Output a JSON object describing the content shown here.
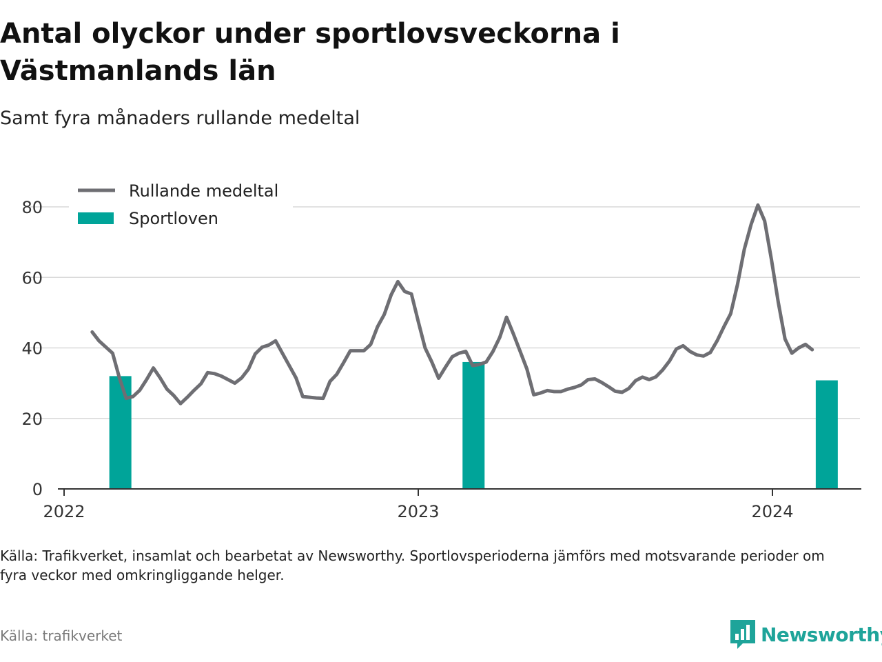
{
  "header": {
    "title": "Antal olyckor under sportlovsveckorna i Västmanlands län",
    "subtitle": "Samt fyra månaders rullande medeltal"
  },
  "footer": {
    "note": "Källa: Trafikverket, insamlat och bearbetat av Newsworthy. Sportlovsperioderna jämförs med motsvarande perioder om fyra veckor med omkringliggande helger.",
    "source": "Källa: trafikverket",
    "brand": "Newsworthy"
  },
  "colors": {
    "line": "#6e6e73",
    "bars": "#00a499",
    "grid": "#d9d9d9",
    "brand": "#1ea49a"
  },
  "chart_data": {
    "type": "bar",
    "x_axis": {
      "min": "2022-01-01",
      "max": "2024-03-31",
      "ticks": [
        "2022",
        "2023",
        "2024"
      ]
    },
    "y_axis": {
      "min": 0,
      "max": 85,
      "ticks": [
        0,
        20,
        40,
        60,
        80
      ]
    },
    "grid": true,
    "legend": {
      "placement": "top-left",
      "line_label": "Rullande medeltal",
      "bar_label": "Sportloven"
    },
    "bars": [
      {
        "date": "2022-02-28",
        "value": 32
      },
      {
        "date": "2023-02-27",
        "value": 36
      },
      {
        "date": "2024-02-26",
        "value": 30.8
      }
    ],
    "series": [
      {
        "name": "Rullande medeltal",
        "type": "line",
        "points": [
          [
            "2022-01-30",
            44.5
          ],
          [
            "2022-02-06",
            42
          ],
          [
            "2022-02-20",
            38.5
          ],
          [
            "2022-02-27",
            31.5
          ],
          [
            "2022-03-06",
            25.7
          ],
          [
            "2022-03-13",
            26.2
          ],
          [
            "2022-03-20",
            28
          ],
          [
            "2022-03-27",
            31
          ],
          [
            "2022-04-03",
            34.3
          ],
          [
            "2022-04-10",
            31.5
          ],
          [
            "2022-04-17",
            28.3
          ],
          [
            "2022-04-24",
            26.5
          ],
          [
            "2022-05-01",
            24.2
          ],
          [
            "2022-05-08",
            26
          ],
          [
            "2022-05-15",
            28
          ],
          [
            "2022-05-22",
            29.8
          ],
          [
            "2022-05-29",
            33
          ],
          [
            "2022-06-05",
            32.7
          ],
          [
            "2022-06-12",
            32
          ],
          [
            "2022-06-19",
            31
          ],
          [
            "2022-06-26",
            30
          ],
          [
            "2022-07-03",
            31.5
          ],
          [
            "2022-07-10",
            34
          ],
          [
            "2022-07-17",
            38.3
          ],
          [
            "2022-07-24",
            40.2
          ],
          [
            "2022-07-31",
            40.8
          ],
          [
            "2022-08-07",
            42
          ],
          [
            "2022-08-14",
            38.5
          ],
          [
            "2022-08-21",
            35
          ],
          [
            "2022-08-28",
            31.5
          ],
          [
            "2022-09-04",
            26.2
          ],
          [
            "2022-09-11",
            26
          ],
          [
            "2022-09-18",
            25.8
          ],
          [
            "2022-09-25",
            25.7
          ],
          [
            "2022-10-02",
            30.5
          ],
          [
            "2022-10-09",
            32.5
          ],
          [
            "2022-10-16",
            35.8
          ],
          [
            "2022-10-23",
            39.2
          ],
          [
            "2022-10-30",
            39.2
          ],
          [
            "2022-11-06",
            39.2
          ],
          [
            "2022-11-13",
            41
          ],
          [
            "2022-11-20",
            46
          ],
          [
            "2022-11-27",
            49.5
          ],
          [
            "2022-12-04",
            55
          ],
          [
            "2022-12-11",
            58.8
          ],
          [
            "2022-12-18",
            56
          ],
          [
            "2022-12-25",
            55.3
          ],
          [
            "2023-01-01",
            47.5
          ],
          [
            "2023-01-08",
            40
          ],
          [
            "2023-01-15",
            36
          ],
          [
            "2023-01-22",
            31.4
          ],
          [
            "2023-01-29",
            34.5
          ],
          [
            "2023-02-05",
            37.5
          ],
          [
            "2023-02-12",
            38.5
          ],
          [
            "2023-02-19",
            39
          ],
          [
            "2023-02-26",
            35
          ],
          [
            "2023-03-05",
            35.3
          ],
          [
            "2023-03-12",
            36
          ],
          [
            "2023-03-19",
            39
          ],
          [
            "2023-03-26",
            43
          ],
          [
            "2023-04-02",
            48.7
          ],
          [
            "2023-04-09",
            44
          ],
          [
            "2023-04-16",
            39
          ],
          [
            "2023-04-23",
            34
          ],
          [
            "2023-04-30",
            26.7
          ],
          [
            "2023-05-07",
            27.2
          ],
          [
            "2023-05-14",
            27.9
          ],
          [
            "2023-05-21",
            27.6
          ],
          [
            "2023-05-28",
            27.6
          ],
          [
            "2023-06-04",
            28.3
          ],
          [
            "2023-06-11",
            28.8
          ],
          [
            "2023-06-18",
            29.5
          ],
          [
            "2023-06-25",
            31
          ],
          [
            "2023-07-02",
            31.2
          ],
          [
            "2023-07-09",
            30.2
          ],
          [
            "2023-07-16",
            29
          ],
          [
            "2023-07-23",
            27.7
          ],
          [
            "2023-07-30",
            27.4
          ],
          [
            "2023-08-06",
            28.5
          ],
          [
            "2023-08-13",
            30.7
          ],
          [
            "2023-08-20",
            31.7
          ],
          [
            "2023-08-27",
            31
          ],
          [
            "2023-09-03",
            31.8
          ],
          [
            "2023-09-10",
            33.8
          ],
          [
            "2023-09-17",
            36.3
          ],
          [
            "2023-09-24",
            39.7
          ],
          [
            "2023-10-01",
            40.6
          ],
          [
            "2023-10-08",
            39
          ],
          [
            "2023-10-15",
            38
          ],
          [
            "2023-10-22",
            37.7
          ],
          [
            "2023-10-29",
            38.7
          ],
          [
            "2023-11-05",
            42
          ],
          [
            "2023-11-12",
            46
          ],
          [
            "2023-11-19",
            49.7
          ],
          [
            "2023-11-26",
            58
          ],
          [
            "2023-12-03",
            68
          ],
          [
            "2023-12-10",
            75
          ],
          [
            "2023-12-17",
            80.5
          ],
          [
            "2023-12-24",
            76
          ],
          [
            "2023-12-31",
            65
          ],
          [
            "2024-01-07",
            53
          ],
          [
            "2024-01-14",
            42.5
          ],
          [
            "2024-01-21",
            38.5
          ],
          [
            "2024-01-28",
            40
          ],
          [
            "2024-02-04",
            41
          ],
          [
            "2024-02-11",
            39.5
          ]
        ]
      }
    ]
  }
}
